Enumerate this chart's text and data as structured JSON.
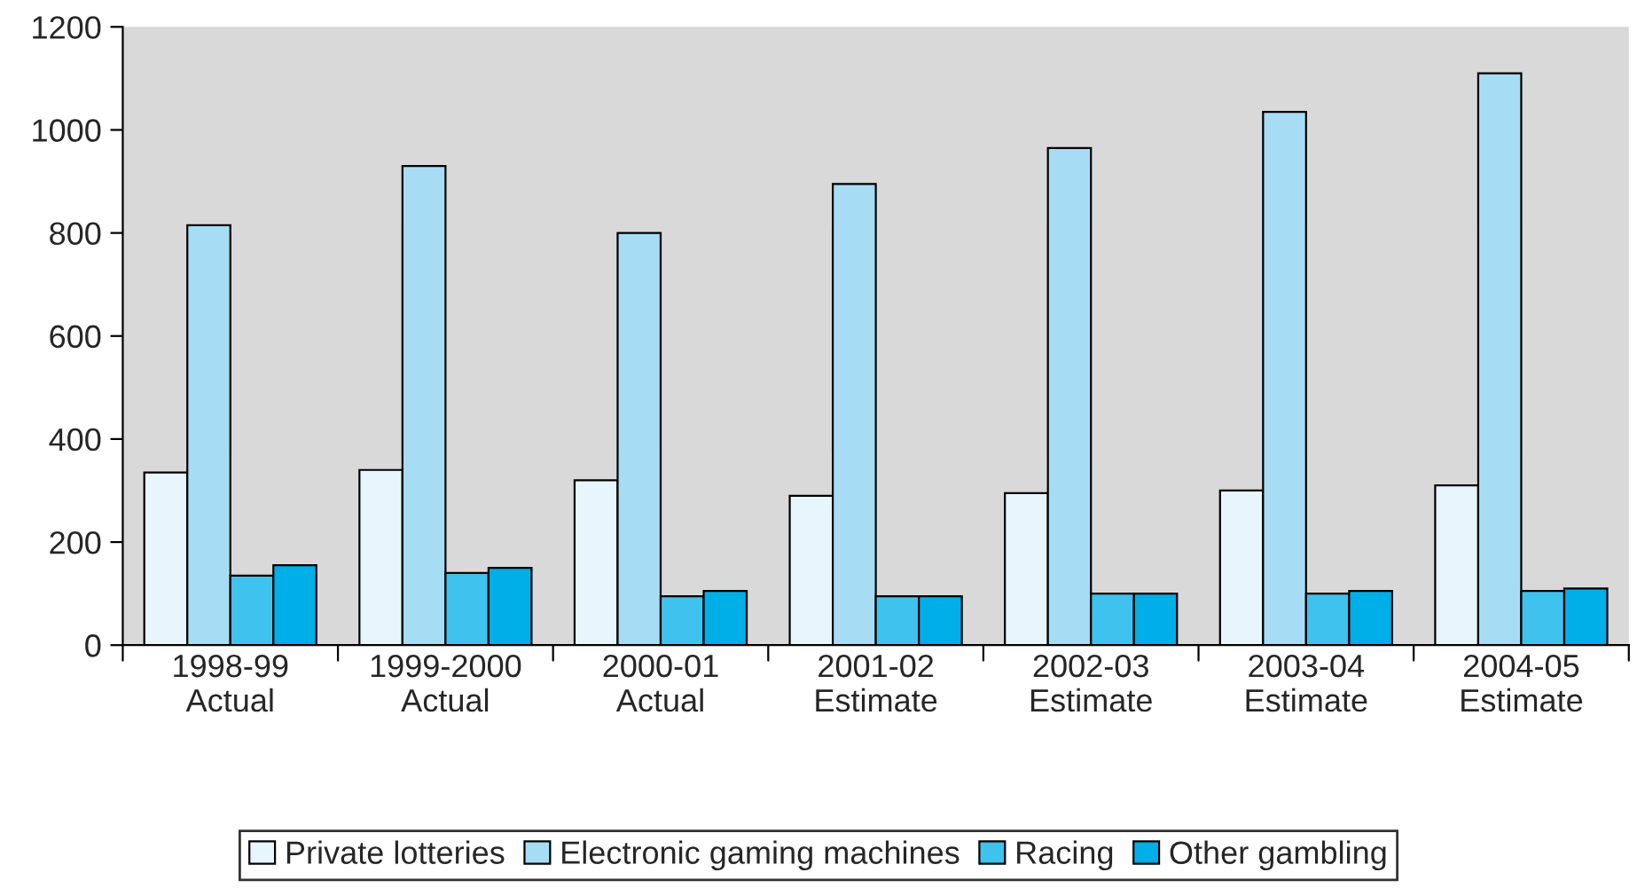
{
  "chart_data": {
    "type": "bar",
    "categories": [
      "1998-99\nActual",
      "1999-2000\nActual",
      "2000-01\nActual",
      "2001-02\nEstimate",
      "2002-03\nEstimate",
      "2003-04\nEstimate",
      "2004-05\nEstimate"
    ],
    "series": [
      {
        "name": "Private lotteries",
        "color": "#e6f6fc",
        "values": [
          335,
          340,
          320,
          290,
          295,
          300,
          310
        ]
      },
      {
        "name": "Electronic gaming machines",
        "color": "#a6ddf5",
        "values": [
          815,
          930,
          800,
          895,
          965,
          1035,
          1110
        ]
      },
      {
        "name": "Racing",
        "color": "#3fc2ee",
        "values": [
          135,
          140,
          95,
          95,
          100,
          100,
          105
        ]
      },
      {
        "name": "Other gambling",
        "color": "#00aee8",
        "values": [
          155,
          150,
          105,
          95,
          100,
          105,
          110
        ]
      }
    ],
    "ylim": [
      0,
      1200
    ],
    "yticks": [
      0,
      200,
      400,
      600,
      800,
      1000,
      1200
    ],
    "grid": false,
    "legend": "bottom"
  }
}
